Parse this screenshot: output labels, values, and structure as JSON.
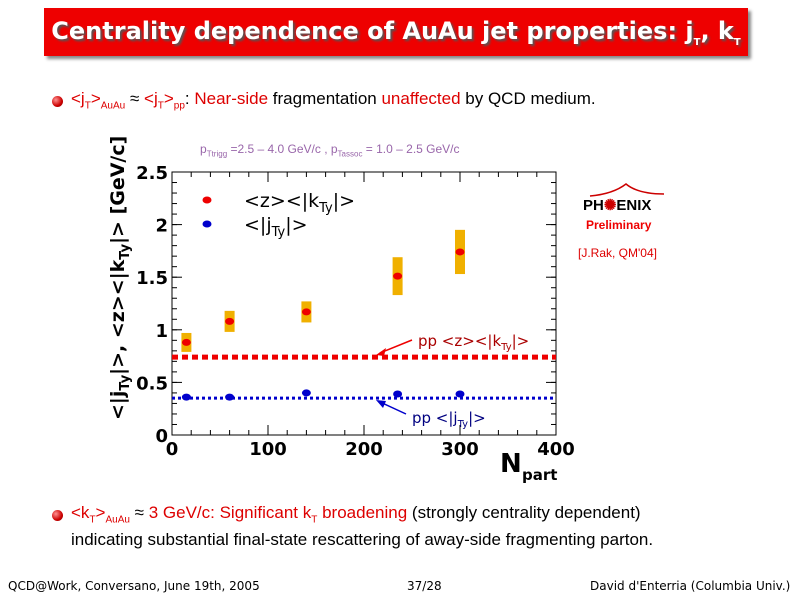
{
  "title": {
    "main": "Centrality dependence of AuAu jet properties: j",
    "sub1": "T",
    "comma": ", k",
    "sub2": "T"
  },
  "bullet1": {
    "jt_auau": "<j",
    "t1": "T",
    "close1": ">",
    "auau": "AuAu",
    "approx": " ≈ ",
    "jt_pp": "<j",
    "t2": "T",
    "close2": ">",
    "pp": "pp",
    "colon": ": ",
    "near_side": "Near-side",
    "fragmentation": " fragmentation ",
    "unaffected": "unaffected",
    "rest": " by QCD medium."
  },
  "cuts": {
    "p1": "p",
    "trig_sub": "Ttrigg",
    "p1_range": " =2.5 – 4.0 GeV/c , p",
    "assoc_sub": "Tassoc",
    "p2_range": " = 1.0 – 2.5 GeV/c"
  },
  "logo": {
    "ph": "PH",
    "enix": "ENIX",
    "preliminary": "Preliminary",
    "reference": "[J.Rak, QM'04]"
  },
  "bullet2": {
    "kt": "<k",
    "t": "T",
    "close": ">",
    "auau": "AuAu",
    "approx": " ≈ ",
    "value": "3 GeV/c: Significant k",
    "t2": "T",
    "broadening": " broadening",
    "rest": " (strongly centrality dependent)",
    "line2": "indicating substantial final-state rescattering of away-side fragmenting parton."
  },
  "footer": {
    "left": "QCD@Work, Conversano, June 19th, 2005",
    "page": "37/28",
    "right": "David d'Enterria (Columbia Univ.)"
  },
  "colors": {
    "title_bg": "#ee0000",
    "red_series": "#ee0000",
    "blue_series": "#0000cc",
    "error_band": "#f0b000"
  },
  "chart_data": {
    "type": "scatter",
    "x_ticks": [
      "0",
      "100",
      "200",
      "300",
      "400"
    ],
    "y_ticks": [
      "0",
      "0.5",
      "1",
      "1.5",
      "2",
      "2.5"
    ],
    "xlim": [
      0,
      400
    ],
    "ylim": [
      0,
      2.5
    ],
    "xlabel": "N",
    "xlabel_sub": "part",
    "ylabel": "<|j_Ty|>, <z><|k_Ty|> [GeV/c]",
    "legend": [
      "<z><|k_Ty|>",
      "<|j_Ty|>"
    ],
    "series": [
      {
        "name": "<z><|k_Ty|>",
        "color": "#ee0000",
        "x": [
          15,
          60,
          140,
          235,
          300
        ],
        "y": [
          0.88,
          1.08,
          1.17,
          1.51,
          1.74
        ],
        "sys_err": [
          0.09,
          0.1,
          0.1,
          0.18,
          0.21
        ]
      },
      {
        "name": "<|j_Ty|>",
        "color": "#0000cc",
        "x": [
          15,
          60,
          140,
          235,
          300
        ],
        "y": [
          0.36,
          0.36,
          0.4,
          0.39,
          0.39
        ]
      }
    ],
    "reference_lines": [
      {
        "label": "pp <z><|k_Ty|>",
        "value": 0.74,
        "color": "#ee0000"
      },
      {
        "label": "pp <|j_Ty|>",
        "value": 0.35,
        "color": "#0000cc"
      }
    ]
  }
}
